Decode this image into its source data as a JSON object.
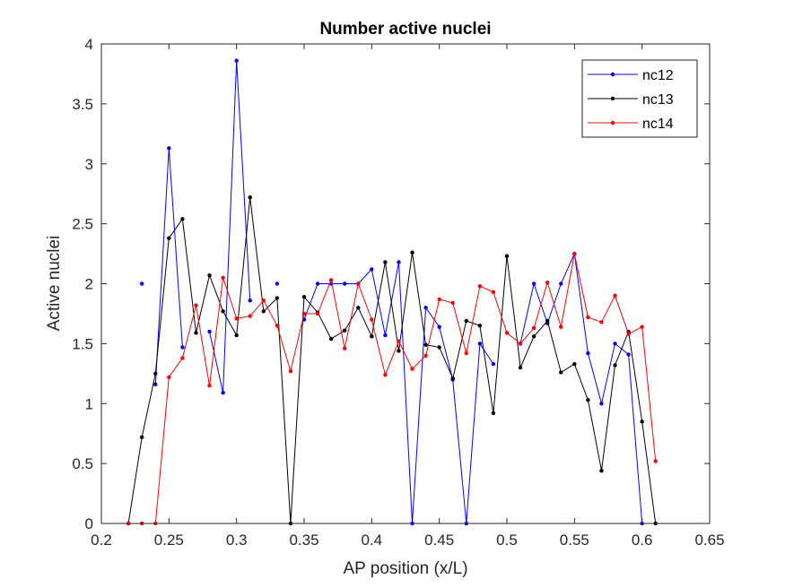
{
  "chart_data": {
    "type": "line",
    "title": "Number active nuclei",
    "xlabel": "AP position (x/L)",
    "ylabel": "Active nuclei",
    "xlim": [
      0.2,
      0.65
    ],
    "ylim": [
      0,
      4
    ],
    "xticks": [
      "0.2",
      "0.25",
      "0.3",
      "0.35",
      "0.4",
      "0.45",
      "0.5",
      "0.55",
      "0.6",
      "0.65"
    ],
    "yticks": [
      "0",
      "0.5",
      "1",
      "1.5",
      "2",
      "2.5",
      "3",
      "3.5",
      "4"
    ],
    "grid": false,
    "legend_position": "top-right",
    "series": [
      {
        "name": "nc12",
        "color": "#0000ff",
        "segments": [
          {
            "x": [
              0.23
            ],
            "y": [
              2.0
            ]
          },
          {
            "x": [
              0.24,
              0.25,
              0.26
            ],
            "y": [
              1.16,
              3.13,
              1.47
            ]
          },
          {
            "x": [
              0.28,
              0.29,
              0.3,
              0.31
            ],
            "y": [
              1.6,
              1.09,
              3.86,
              1.86
            ]
          },
          {
            "x": [
              0.33
            ],
            "y": [
              2.0
            ]
          },
          {
            "x": [
              0.35,
              0.36,
              0.37,
              0.38,
              0.39,
              0.4,
              0.41,
              0.42,
              0.43,
              0.44,
              0.45,
              0.46,
              0.47,
              0.48,
              0.49
            ],
            "y": [
              1.7,
              2.0,
              2.0,
              2.0,
              2.0,
              2.12,
              1.57,
              2.18,
              0.0,
              1.8,
              1.64,
              1.2,
              0.0,
              1.5,
              1.33
            ]
          },
          {
            "x": [
              0.51,
              0.52,
              0.53,
              0.54,
              0.55,
              0.56,
              0.57,
              0.58,
              0.59,
              0.6
            ],
            "y": [
              1.5,
              2.0,
              1.67,
              2.0,
              2.25,
              1.42,
              1.0,
              1.5,
              1.41,
              0.0
            ]
          }
        ]
      },
      {
        "name": "nc13",
        "color": "#000000",
        "segments": [
          {
            "x": [
              0.22,
              0.23,
              0.24,
              0.25,
              0.26,
              0.27,
              0.28,
              0.29,
              0.3,
              0.31,
              0.32,
              0.33,
              0.34,
              0.35,
              0.36,
              0.37,
              0.38,
              0.39,
              0.4,
              0.41,
              0.42,
              0.43,
              0.44,
              0.45,
              0.46,
              0.47,
              0.48,
              0.49,
              0.5,
              0.51,
              0.52,
              0.53,
              0.54,
              0.55,
              0.56,
              0.57,
              0.58,
              0.59,
              0.6,
              0.61
            ],
            "y": [
              0.0,
              0.72,
              1.25,
              2.38,
              2.54,
              1.59,
              2.07,
              1.77,
              1.57,
              2.72,
              1.77,
              1.88,
              0.0,
              1.89,
              1.76,
              1.54,
              1.61,
              1.8,
              1.56,
              2.18,
              1.44,
              2.26,
              1.49,
              1.47,
              1.21,
              1.69,
              1.65,
              0.92,
              2.23,
              1.3,
              1.56,
              1.69,
              1.26,
              1.33,
              1.03,
              0.44,
              1.32,
              1.6,
              0.85,
              0.0
            ]
          }
        ]
      },
      {
        "name": "nc14",
        "color": "#ff0000",
        "segments": [
          {
            "x": [
              0.22,
              0.23,
              0.24,
              0.25,
              0.26,
              0.27,
              0.28,
              0.29,
              0.3,
              0.31,
              0.32,
              0.33,
              0.34,
              0.35,
              0.36,
              0.37,
              0.38,
              0.39,
              0.4,
              0.41,
              0.42,
              0.43,
              0.44,
              0.45,
              0.46,
              0.47,
              0.48,
              0.49,
              0.5,
              0.51,
              0.52,
              0.53,
              0.54,
              0.55,
              0.56,
              0.57,
              0.58,
              0.59,
              0.6,
              0.61
            ],
            "y": [
              0.0,
              0.0,
              0.0,
              1.22,
              1.38,
              1.82,
              1.15,
              2.05,
              1.71,
              1.73,
              1.86,
              1.65,
              1.27,
              1.75,
              1.75,
              2.03,
              1.46,
              2.0,
              1.7,
              1.24,
              1.52,
              1.29,
              1.4,
              1.87,
              1.84,
              1.42,
              1.98,
              1.93,
              1.59,
              1.5,
              1.63,
              2.01,
              1.64,
              2.25,
              1.72,
              1.68,
              1.9,
              1.58,
              1.64,
              0.52
            ]
          }
        ]
      }
    ]
  }
}
